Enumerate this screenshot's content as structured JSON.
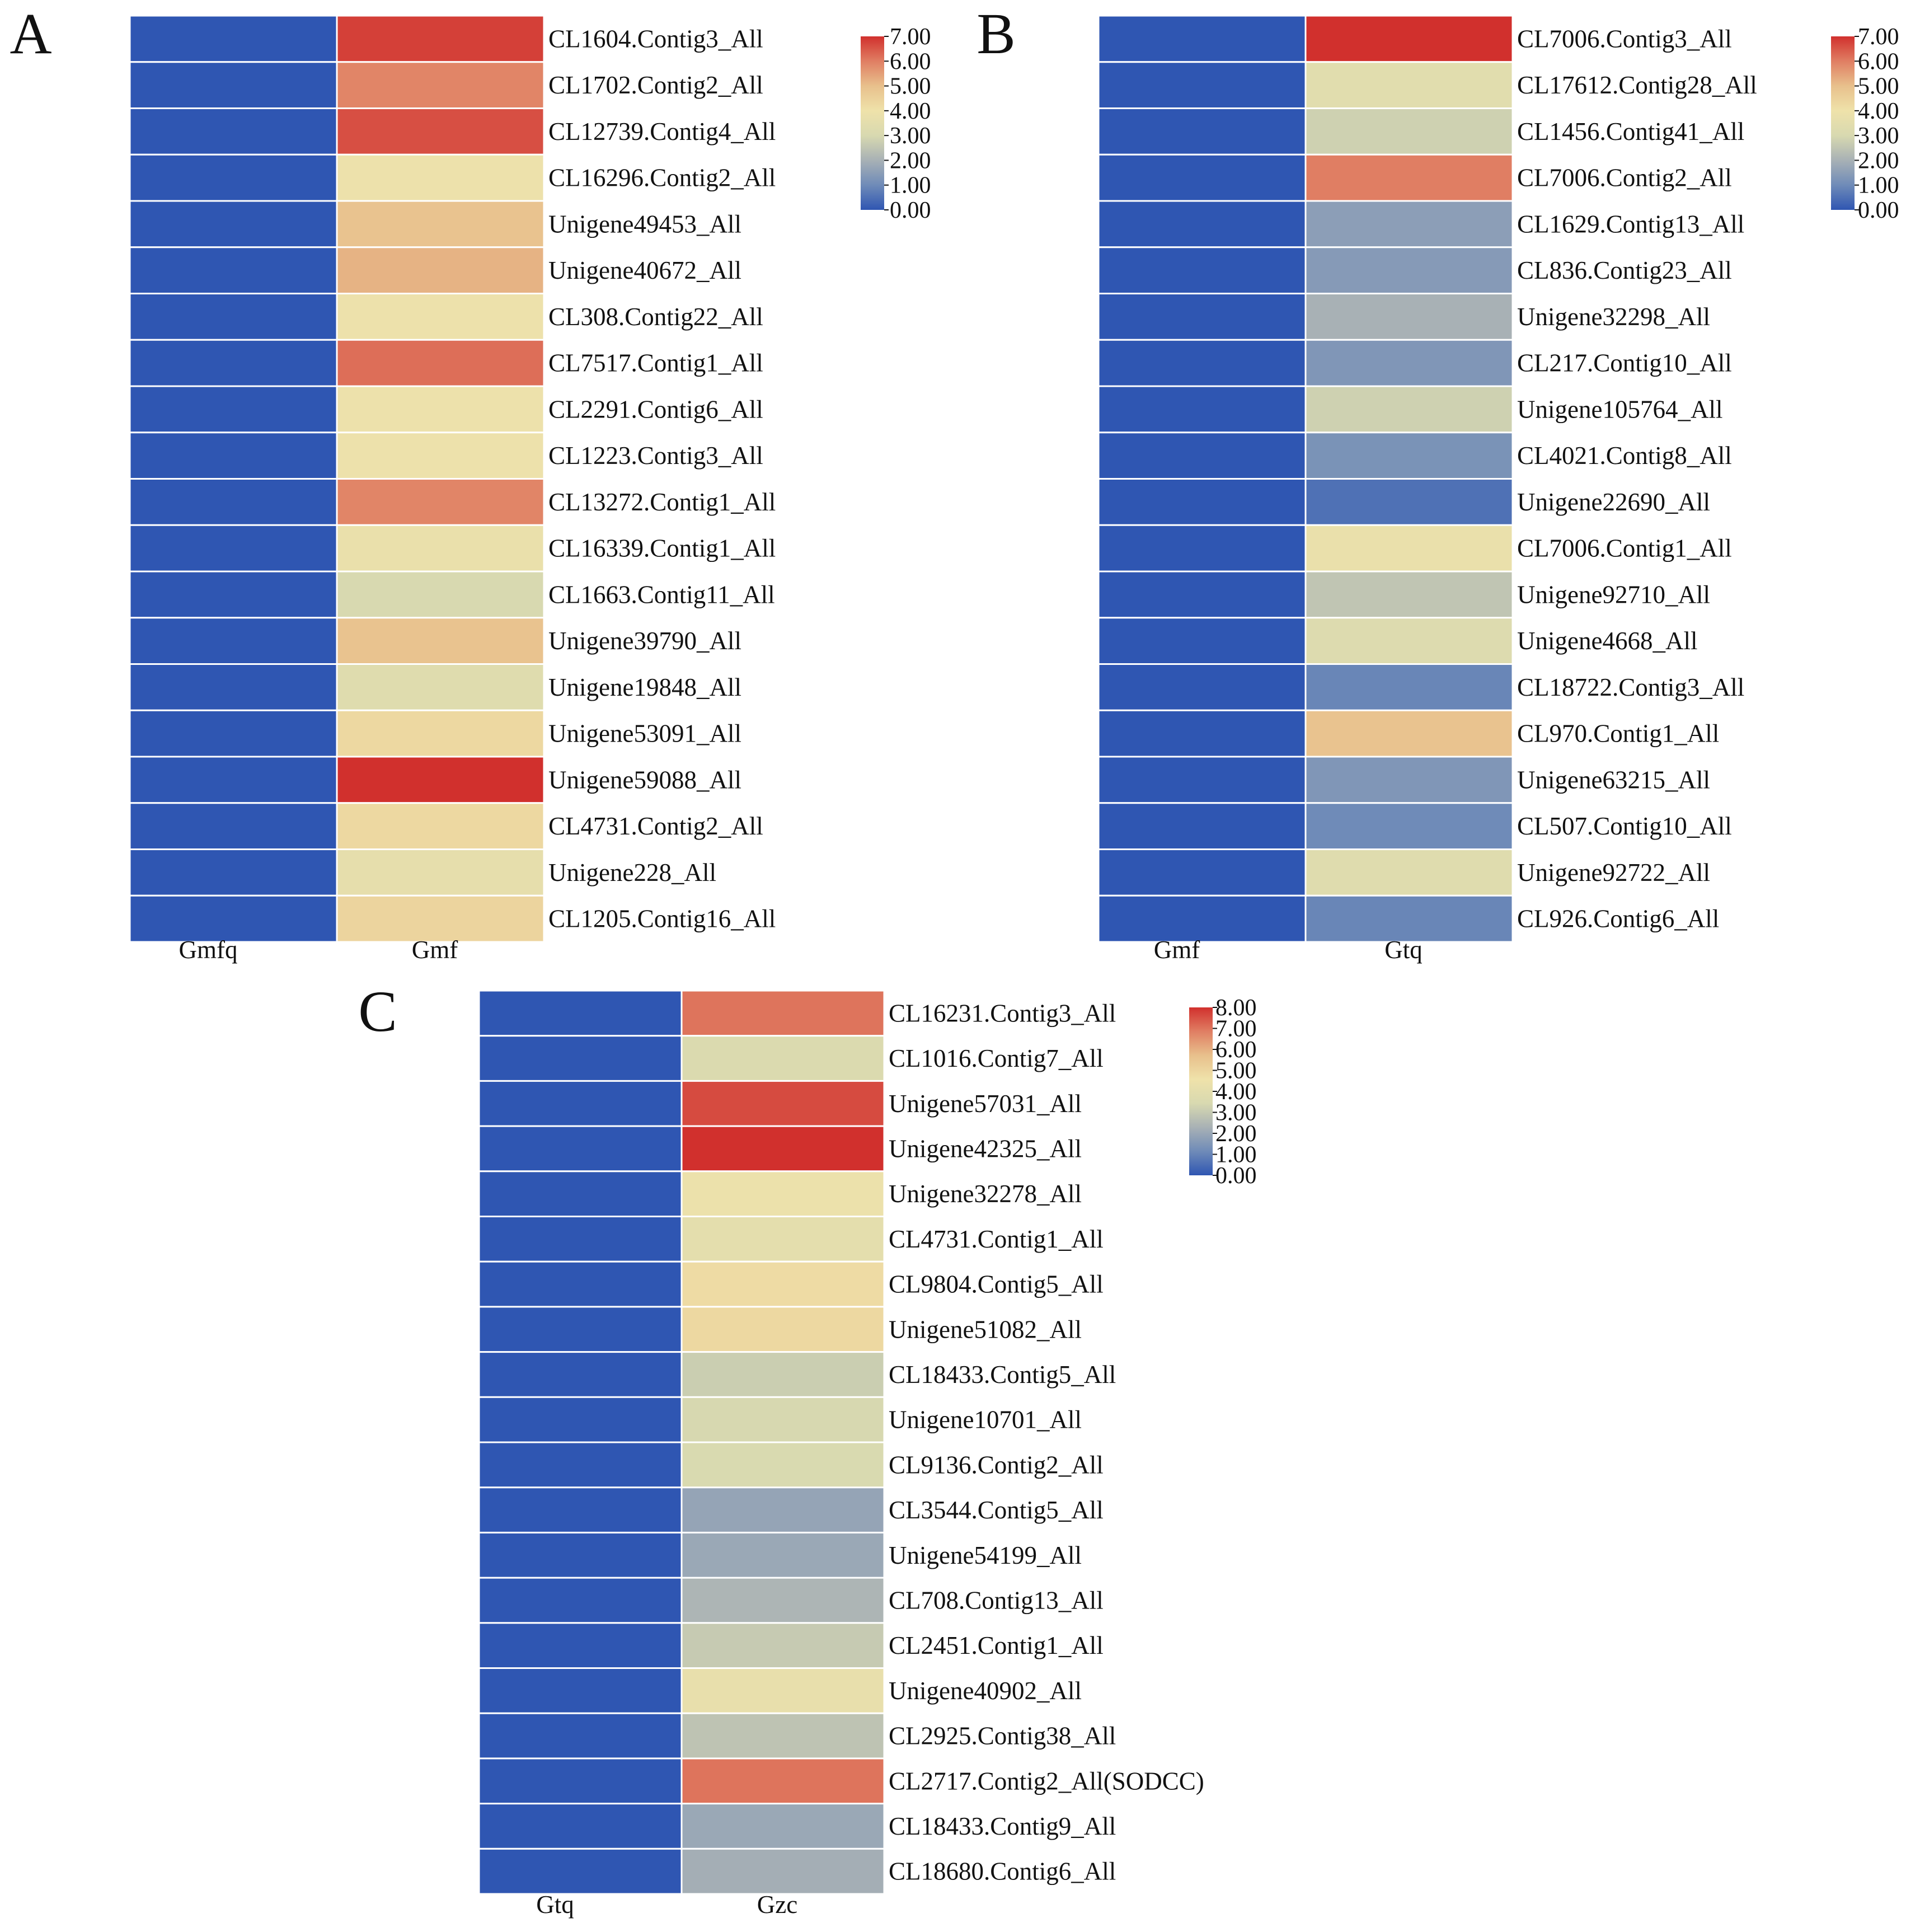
{
  "colorscale": {
    "stops": [
      "#2f56b2",
      "#6f8bb8",
      "#a8b1b5",
      "#d8d9b0",
      "#efe2aa",
      "#e8c08c",
      "#e07e63",
      "#d1302d"
    ]
  },
  "chart_data": [
    {
      "type": "heatmap",
      "panel_label": "A",
      "columns": [
        "Gmfq",
        "Gmf"
      ],
      "rows": [
        "CL1604.Contig3_All",
        "CL1702.Contig2_All",
        "CL12739.Contig4_All",
        "CL16296.Contig2_All",
        "Unigene49453_All",
        "Unigene40672_All",
        "CL308.Contig22_All",
        "CL7517.Contig1_All",
        "CL2291.Contig6_All",
        "CL1223.Contig3_All",
        "CL13272.Contig1_All",
        "CL16339.Contig1_All",
        "CL1663.Contig11_All",
        "Unigene39790_All",
        "Unigene19848_All",
        "Unigene53091_All",
        "Unigene59088_All",
        "CL4731.Contig2_All",
        "Unigene228_All",
        "CL1205.Contig16_All"
      ],
      "values": [
        [
          0,
          6.8
        ],
        [
          0,
          5.9
        ],
        [
          0,
          6.6
        ],
        [
          0,
          3.9
        ],
        [
          0,
          4.9
        ],
        [
          0,
          5.2
        ],
        [
          0,
          3.9
        ],
        [
          0,
          6.2
        ],
        [
          0,
          3.9
        ],
        [
          0,
          3.9
        ],
        [
          0,
          5.9
        ],
        [
          0,
          3.8
        ],
        [
          0,
          3.0
        ],
        [
          0,
          4.9
        ],
        [
          0,
          3.3
        ],
        [
          0,
          4.3
        ],
        [
          0,
          7.0
        ],
        [
          0,
          4.3
        ],
        [
          0,
          3.6
        ],
        [
          0,
          4.4
        ]
      ],
      "colorbar": {
        "min": 0,
        "max": 7,
        "ticks": [
          "7.00",
          "6.00",
          "5.00",
          "4.00",
          "3.00",
          "2.00",
          "1.00",
          "0.00"
        ]
      }
    },
    {
      "type": "heatmap",
      "panel_label": "B",
      "columns": [
        "Gmf",
        "Gtq"
      ],
      "rows": [
        "CL7006.Contig3_All",
        "CL17612.Contig28_All",
        "CL1456.Contig41_All",
        "CL7006.Contig2_All",
        "CL1629.Contig13_All",
        "CL836.Contig23_All",
        "Unigene32298_All",
        "CL217.Contig10_All",
        "Unigene105764_All",
        "CL4021.Contig8_All",
        "Unigene22690_All",
        "CL7006.Contig1_All",
        "Unigene92710_All",
        "Unigene4668_All",
        "CL18722.Contig3_All",
        "CL970.Contig1_All",
        "Unigene63215_All",
        "CL507.Contig10_All",
        "Unigene92722_All",
        "CL926.Contig6_All"
      ],
      "values": [
        [
          0,
          7.0
        ],
        [
          0,
          3.4
        ],
        [
          0,
          2.8
        ],
        [
          0,
          6.0
        ],
        [
          0,
          1.5
        ],
        [
          0,
          1.4
        ],
        [
          0,
          2.0
        ],
        [
          0,
          1.3
        ],
        [
          0,
          2.8
        ],
        [
          0,
          1.2
        ],
        [
          0,
          0.5
        ],
        [
          0,
          3.8
        ],
        [
          0,
          2.5
        ],
        [
          0,
          3.2
        ],
        [
          0,
          0.9
        ],
        [
          0,
          4.9
        ],
        [
          0,
          1.3
        ],
        [
          0,
          1.0
        ],
        [
          0,
          3.3
        ],
        [
          0,
          0.9
        ]
      ],
      "colorbar": {
        "min": 0,
        "max": 7,
        "ticks": [
          "7.00",
          "6.00",
          "5.00",
          "4.00",
          "3.00",
          "2.00",
          "1.00",
          "0.00"
        ]
      }
    },
    {
      "type": "heatmap",
      "panel_label": "C",
      "columns": [
        "Gtq",
        "Gzc"
      ],
      "rows": [
        "CL16231.Contig3_All",
        "CL1016.Contig7_All",
        "Unigene57031_All",
        "Unigene42325_All",
        "Unigene32278_All",
        "CL4731.Contig1_All",
        "CL9804.Contig5_All",
        "Unigene51082_All",
        "CL18433.Contig5_All",
        "Unigene10701_All",
        "CL9136.Contig2_All",
        "CL3544.Contig5_All",
        "Unigene54199_All",
        "CL708.Contig13_All",
        "CL2451.Contig1_All",
        "Unigene40902_All",
        "CL2925.Contig38_All",
        "CL2717.Contig2_All(SODCC)",
        "CL18433.Contig9_All",
        "CL18680.Contig6_All"
      ],
      "values": [
        [
          0,
          7.0
        ],
        [
          0,
          3.6
        ],
        [
          0,
          7.6
        ],
        [
          0,
          8.0
        ],
        [
          0,
          4.4
        ],
        [
          0,
          4.0
        ],
        [
          0,
          4.8
        ],
        [
          0,
          4.9
        ],
        [
          0,
          3.1
        ],
        [
          0,
          3.4
        ],
        [
          0,
          3.5
        ],
        [
          0,
          1.9
        ],
        [
          0,
          2.0
        ],
        [
          0,
          2.4
        ],
        [
          0,
          3.0
        ],
        [
          0,
          4.2
        ],
        [
          0,
          2.8
        ],
        [
          0,
          7.0
        ],
        [
          0,
          2.0
        ],
        [
          0,
          2.2
        ]
      ],
      "colorbar": {
        "min": 0,
        "max": 8,
        "ticks": [
          "8.00",
          "7.00",
          "6.00",
          "5.00",
          "4.00",
          "3.00",
          "2.00",
          "1.00",
          "0.00"
        ]
      }
    }
  ]
}
